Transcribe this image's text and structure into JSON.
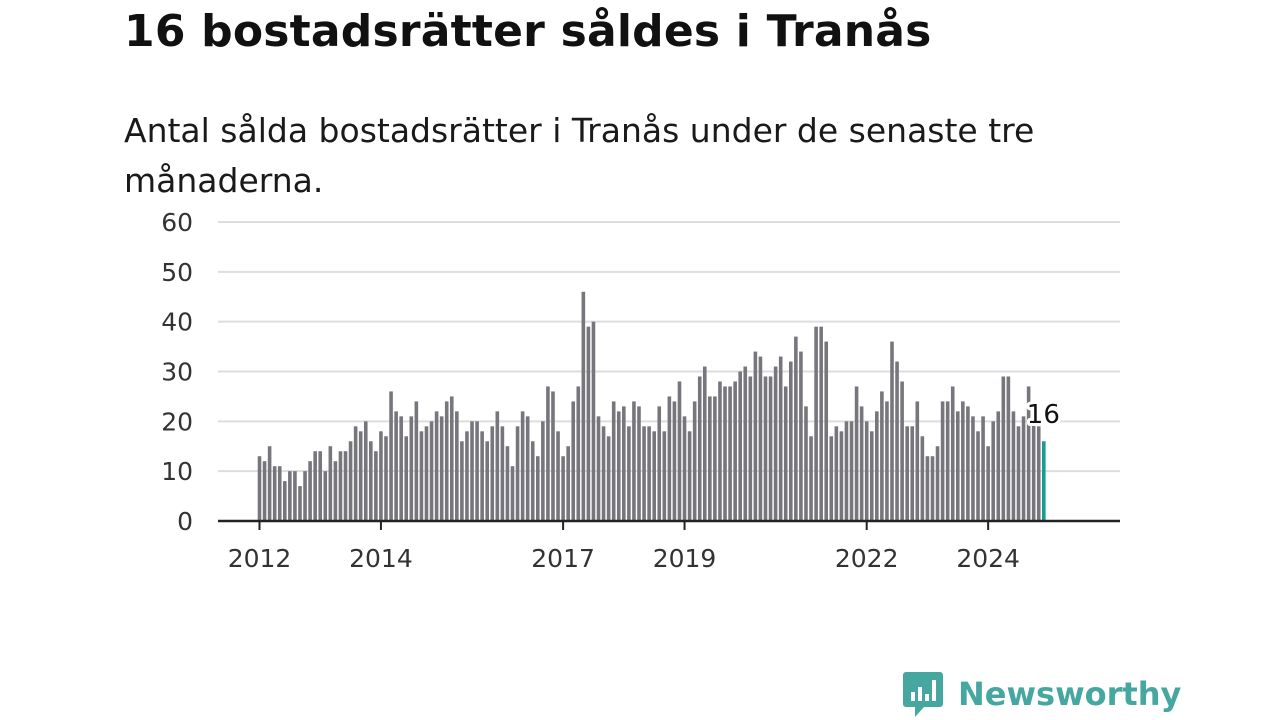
{
  "title": "16 bostadsrätter såldes i Tranås",
  "subtitle": "Antal sålda bostadsrätter i Tranås under de senaste tre månaderna.",
  "brand": {
    "name": "Newsworthy",
    "color": "#46a7a1",
    "icon": "newsworthy-logo-icon"
  },
  "colors": {
    "bar": "#77767c",
    "highlight": "#1a9c93",
    "grid": "#dddddd",
    "axis": "#222222"
  },
  "chart_data": {
    "type": "bar",
    "title": "16 bostadsrätter såldes i Tranås",
    "xlabel": "",
    "ylabel": "",
    "ylim": [
      0,
      60
    ],
    "yticks": [
      0,
      10,
      20,
      30,
      40,
      50,
      60
    ],
    "grid": true,
    "legend": "none",
    "x_tick_labels": [
      "2012",
      "2014",
      "2017",
      "2019",
      "2022",
      "2024"
    ],
    "x_tick_indices": [
      0,
      24,
      60,
      84,
      120,
      144
    ],
    "values": [
      13,
      12,
      15,
      11,
      11,
      8,
      10,
      10,
      7,
      10,
      12,
      14,
      14,
      10,
      15,
      12,
      14,
      14,
      16,
      19,
      18,
      20,
      16,
      14,
      18,
      17,
      26,
      22,
      21,
      17,
      21,
      24,
      18,
      19,
      20,
      22,
      21,
      24,
      25,
      22,
      16,
      18,
      20,
      20,
      18,
      16,
      19,
      22,
      19,
      15,
      11,
      19,
      22,
      21,
      16,
      13,
      20,
      27,
      26,
      18,
      13,
      15,
      24,
      27,
      46,
      39,
      40,
      21,
      19,
      17,
      24,
      22,
      23,
      19,
      24,
      23,
      19,
      19,
      18,
      23,
      18,
      25,
      24,
      28,
      21,
      18,
      24,
      29,
      31,
      25,
      25,
      28,
      27,
      27,
      28,
      30,
      31,
      29,
      34,
      33,
      29,
      29,
      31,
      33,
      27,
      32,
      37,
      34,
      23,
      17,
      39,
      39,
      36,
      17,
      19,
      18,
      20,
      20,
      27,
      23,
      20,
      18,
      22,
      26,
      24,
      36,
      32,
      28,
      19,
      19,
      24,
      17,
      13,
      13,
      15,
      24,
      24,
      27,
      22,
      24,
      23,
      21,
      18,
      21,
      15,
      20,
      22,
      29,
      29,
      22,
      19,
      21,
      27,
      21,
      19,
      16
    ],
    "highlight_index": 155,
    "data_label": "16"
  }
}
